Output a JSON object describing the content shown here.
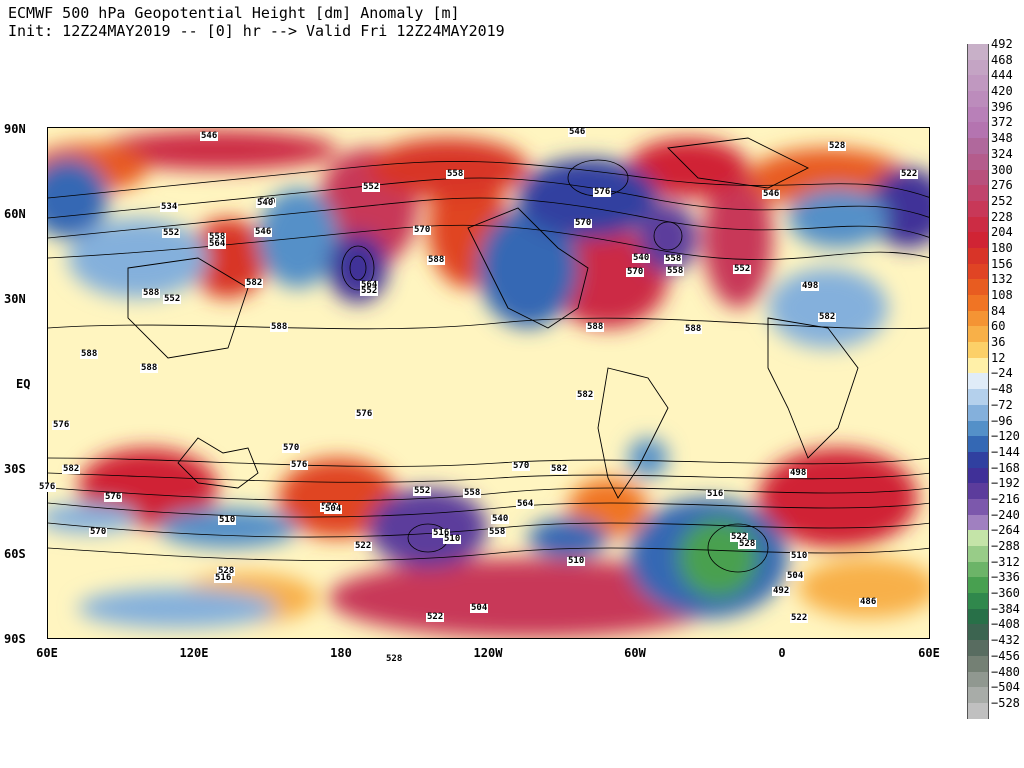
{
  "header": {
    "title_line1": "ECMWF 500 hPa Geopotential Height [dm] Anomaly [m]",
    "title_line2": "Init: 12Z24MAY2019 -- [0] hr --> Valid Fri 12Z24MAY2019"
  },
  "map": {
    "lat_labels": [
      "90N",
      "60N",
      "30N",
      "EQ",
      "30S",
      "60S",
      "90S"
    ],
    "lon_labels": [
      "60E",
      "120E",
      "180",
      "120W",
      "60W",
      "0",
      "60E"
    ],
    "contour_labels": [
      "546",
      "546",
      "528",
      "522",
      "558",
      "540",
      "552",
      "534",
      "540",
      "546",
      "552",
      "558",
      "564",
      "570",
      "576",
      "582",
      "552",
      "588",
      "570",
      "558",
      "546",
      "564",
      "540",
      "558",
      "570",
      "552",
      "588",
      "588",
      "588",
      "588",
      "588",
      "582",
      "576",
      "582",
      "570",
      "576",
      "570",
      "582",
      "576",
      "576",
      "564",
      "570",
      "552",
      "558",
      "540",
      "516",
      "510",
      "522",
      "528",
      "516",
      "510",
      "522",
      "504",
      "558",
      "528",
      "516",
      "522",
      "528",
      "510",
      "504",
      "492",
      "486",
      "522",
      "510",
      "504",
      "498",
      "498",
      "552",
      "570",
      "576",
      "582",
      "588"
    ]
  },
  "legend": {
    "labels": [
      "492",
      "468",
      "444",
      "420",
      "396",
      "372",
      "348",
      "324",
      "300",
      "276",
      "252",
      "228",
      "204",
      "180",
      "156",
      "132",
      "108",
      "84",
      "60",
      "36",
      "12",
      "−24",
      "−48",
      "−72",
      "−96",
      "−120",
      "−144",
      "−168",
      "−192",
      "−216",
      "−240",
      "−264",
      "−288",
      "−312",
      "−336",
      "−360",
      "−384",
      "−408",
      "−432",
      "−456",
      "−480",
      "−504",
      "−528"
    ],
    "colors": [
      "#c8b0c8",
      "#c4a4c4",
      "#c098c0",
      "#bc8cbc",
      "#b880b8",
      "#b474b0",
      "#b0689c",
      "#b45c8c",
      "#b8507c",
      "#c0446c",
      "#c83858",
      "#cc2c44",
      "#d02434",
      "#d83428",
      "#e04424",
      "#e85c20",
      "#f07424",
      "#f49434",
      "#f8b048",
      "#fcd068",
      "#fff0a8",
      "#e0ecf8",
      "#b4d0ec",
      "#84b0dc",
      "#5490c8",
      "#3468b4",
      "#3040a0",
      "#403098",
      "#5c3c9c",
      "#7c58ac",
      "#a080c0",
      "#c4e4a8",
      "#98cc88",
      "#6cb468",
      "#48a050",
      "#30884c",
      "#287048",
      "#3c6450",
      "#586c60",
      "#748074",
      "#909890",
      "#a8aca8",
      "#c0c0c0"
    ]
  }
}
